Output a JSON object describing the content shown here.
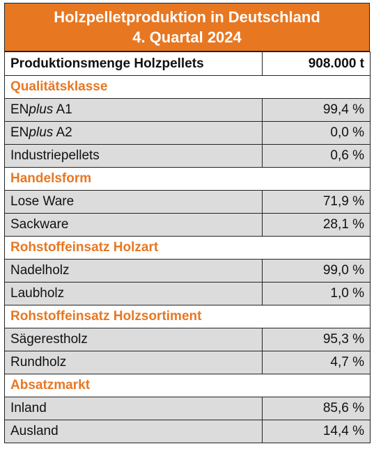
{
  "title": {
    "line1": "Holzpelletproduktion in Deutschland",
    "line2": "4. Quartal 2024"
  },
  "header": {
    "label": "Produktionsmenge Holzpellets",
    "value": "908.000 t"
  },
  "sections": [
    {
      "name": "Qualitätsklasse",
      "rows": [
        {
          "label_pre": "EN",
          "label_em": "plus",
          "label_post": " A1",
          "value": "99,4 %"
        },
        {
          "label_pre": "EN",
          "label_em": "plus",
          "label_post": " A2",
          "value": "0,0 %"
        },
        {
          "label_pre": "Industriepellets",
          "label_em": "",
          "label_post": "",
          "value": "0,6 %"
        }
      ]
    },
    {
      "name": "Handelsform",
      "rows": [
        {
          "label_pre": "Lose Ware",
          "label_em": "",
          "label_post": "",
          "value": "71,9 %"
        },
        {
          "label_pre": "Sackware",
          "label_em": "",
          "label_post": "",
          "value": "28,1 %"
        }
      ]
    },
    {
      "name": "Rohstoffeinsatz Holzart",
      "rows": [
        {
          "label_pre": "Nadelholz",
          "label_em": "",
          "label_post": "",
          "value": "99,0 %"
        },
        {
          "label_pre": "Laubholz",
          "label_em": "",
          "label_post": "",
          "value": "1,0 %"
        }
      ]
    },
    {
      "name": "Rohstoffeinsatz Holzsortiment",
      "rows": [
        {
          "label_pre": "Sägerestholz",
          "label_em": "",
          "label_post": "",
          "value": "95,3 %"
        },
        {
          "label_pre": "Rundholz",
          "label_em": "",
          "label_post": "",
          "value": "4,7 %"
        }
      ]
    },
    {
      "name": "Absatzmarkt",
      "rows": [
        {
          "label_pre": "Inland",
          "label_em": "",
          "label_post": "",
          "value": "85,6 %"
        },
        {
          "label_pre": "Ausland",
          "label_em": "",
          "label_post": "",
          "value": "14,4 %"
        }
      ]
    }
  ],
  "colors": {
    "accent": "#e87722",
    "row_fill": "#dcdcdc"
  }
}
